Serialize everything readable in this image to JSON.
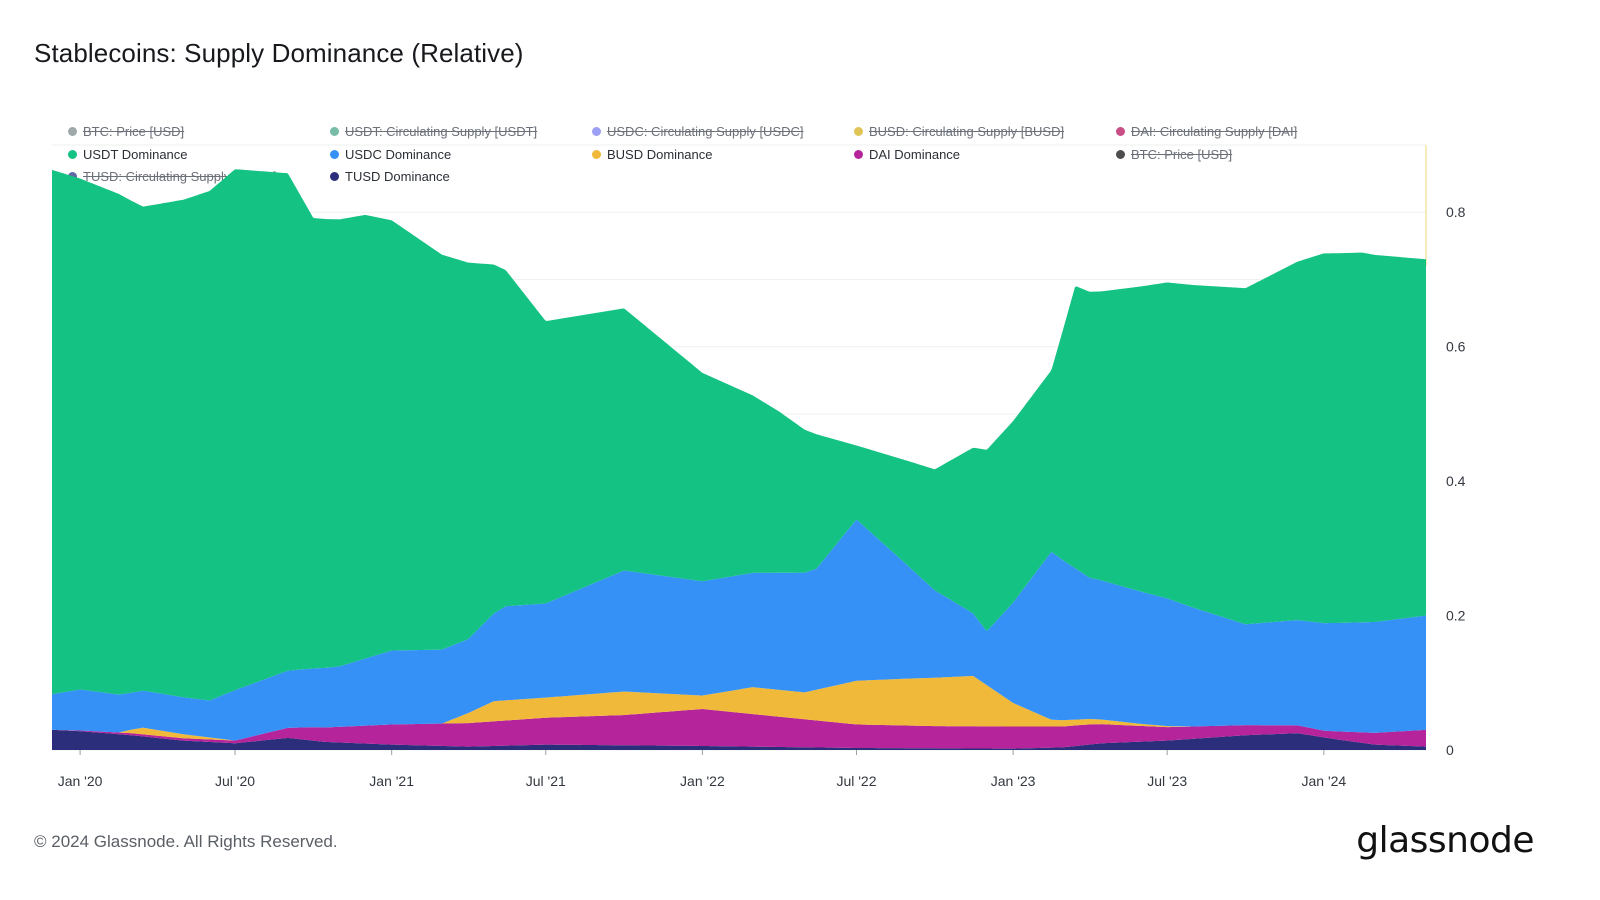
{
  "page": {
    "title": "Stablecoins: Supply Dominance (Relative)",
    "copyright": "© 2024 Glassnode. All Rights Reserved.",
    "brand": "glassnode"
  },
  "legend": {
    "rows": [
      [
        {
          "label": "BTC: Price [USD]",
          "color": "#7f8c8d",
          "enabled": false
        },
        {
          "label": "USDT: Circulating Supply [USDT]",
          "color": "#4aa58a",
          "enabled": false
        },
        {
          "label": "USDC: Circulating Supply [USDC]",
          "color": "#7b7ff0",
          "enabled": false
        },
        {
          "label": "BUSD: Circulating Supply [BUSD]",
          "color": "#d4b21c",
          "enabled": false
        },
        {
          "label": "DAI: Circulating Supply [DAI]",
          "color": "#b5135c",
          "enabled": false
        }
      ],
      [
        {
          "label": "USDT Dominance",
          "color": "#14c283",
          "enabled": true
        },
        {
          "label": "USDC Dominance",
          "color": "#3691f7",
          "enabled": true
        },
        {
          "label": "BUSD Dominance",
          "color": "#f0b93a",
          "enabled": true
        },
        {
          "label": "DAI Dominance",
          "color": "#b5249b",
          "enabled": true
        },
        {
          "label": "BTC: Price [USD]",
          "color": "#111111",
          "enabled": false
        }
      ],
      [
        {
          "label": "TUSD: Circulating Supply [TUSD]",
          "color": "#2c3585",
          "enabled": false
        },
        {
          "label": "TUSD Dominance",
          "color": "#2b2e7a",
          "enabled": true
        }
      ]
    ]
  },
  "chart_data": {
    "type": "area",
    "stacked": true,
    "x_ticks": [
      "Jan '20",
      "Jul '20",
      "Jan '21",
      "Jul '21",
      "Jan '22",
      "Jul '22",
      "Jan '23",
      "Jul '23",
      "Jan '24"
    ],
    "x_tick_dates": [
      "2020-01-01",
      "2020-07-01",
      "2021-01-01",
      "2021-07-01",
      "2022-01-01",
      "2022-07-01",
      "2023-01-01",
      "2023-07-01",
      "2024-01-01"
    ],
    "x_range": [
      "2019-11-29",
      "2024-04-30"
    ],
    "y_ticks": [
      "0",
      "0.2",
      "0.4",
      "0.6",
      "0.8"
    ],
    "ylim": [
      0,
      0.9
    ],
    "y_axis_side": "right",
    "grid": "horizontal",
    "series_order_bottom_to_top": [
      "TUSD Dominance",
      "DAI Dominance",
      "BUSD Dominance",
      "USDC Dominance",
      "USDT Dominance"
    ],
    "series": [
      {
        "name": "TUSD Dominance",
        "color": "#2b2e7a",
        "points": [
          [
            "2019-11-29",
            0.03
          ],
          [
            "2020-01-01",
            0.028
          ],
          [
            "2020-03-01",
            0.022
          ],
          [
            "2020-05-01",
            0.014
          ],
          [
            "2020-07-01",
            0.01
          ],
          [
            "2020-09-01",
            0.018
          ],
          [
            "2020-10-15",
            0.012
          ],
          [
            "2021-01-01",
            0.008
          ],
          [
            "2021-04-01",
            0.005
          ],
          [
            "2021-07-01",
            0.008
          ],
          [
            "2022-01-01",
            0.006
          ],
          [
            "2022-07-01",
            0.003
          ],
          [
            "2023-01-01",
            0.002
          ],
          [
            "2023-03-01",
            0.004
          ],
          [
            "2023-04-15",
            0.01
          ],
          [
            "2023-07-01",
            0.014
          ],
          [
            "2023-10-01",
            0.022
          ],
          [
            "2023-12-01",
            0.025
          ],
          [
            "2024-01-15",
            0.016
          ],
          [
            "2024-03-01",
            0.008
          ],
          [
            "2024-04-30",
            0.005
          ]
        ]
      },
      {
        "name": "DAI Dominance",
        "color": "#b5249b",
        "points": [
          [
            "2019-11-29",
            0.0
          ],
          [
            "2020-03-01",
            0.003
          ],
          [
            "2020-07-01",
            0.004
          ],
          [
            "2020-09-01",
            0.015
          ],
          [
            "2020-10-01",
            0.02
          ],
          [
            "2021-01-01",
            0.03
          ],
          [
            "2021-04-01",
            0.035
          ],
          [
            "2021-07-01",
            0.04
          ],
          [
            "2021-10-01",
            0.045
          ],
          [
            "2022-01-01",
            0.055
          ],
          [
            "2022-04-01",
            0.045
          ],
          [
            "2022-07-01",
            0.035
          ],
          [
            "2022-10-01",
            0.033
          ],
          [
            "2023-01-01",
            0.033
          ],
          [
            "2023-04-01",
            0.03
          ],
          [
            "2023-07-01",
            0.02
          ],
          [
            "2023-10-01",
            0.015
          ],
          [
            "2024-01-01",
            0.01
          ],
          [
            "2024-04-30",
            0.025
          ]
        ]
      },
      {
        "name": "BUSD Dominance",
        "color": "#f0b93a",
        "points": [
          [
            "2019-11-29",
            0.0
          ],
          [
            "2020-02-15",
            0.0
          ],
          [
            "2020-03-15",
            0.01
          ],
          [
            "2020-05-01",
            0.006
          ],
          [
            "2020-07-01",
            0.0
          ],
          [
            "2021-03-01",
            0.0
          ],
          [
            "2021-04-01",
            0.015
          ],
          [
            "2021-05-01",
            0.03
          ],
          [
            "2021-07-01",
            0.03
          ],
          [
            "2021-10-01",
            0.035
          ],
          [
            "2022-01-01",
            0.02
          ],
          [
            "2022-03-01",
            0.04
          ],
          [
            "2022-05-01",
            0.04
          ],
          [
            "2022-07-01",
            0.065
          ],
          [
            "2022-09-01",
            0.07
          ],
          [
            "2022-11-15",
            0.075
          ],
          [
            "2023-01-01",
            0.035
          ],
          [
            "2023-02-15",
            0.01
          ],
          [
            "2023-04-01",
            0.008
          ],
          [
            "2023-06-01",
            0.003
          ],
          [
            "2023-08-01",
            0.0
          ],
          [
            "2024-04-30",
            0.0
          ]
        ]
      },
      {
        "name": "USDC Dominance",
        "color": "#3691f7",
        "points": [
          [
            "2019-11-29",
            0.053
          ],
          [
            "2020-01-01",
            0.061
          ],
          [
            "2020-03-01",
            0.055
          ],
          [
            "2020-06-01",
            0.055
          ],
          [
            "2020-07-01",
            0.075
          ],
          [
            "2020-09-01",
            0.085
          ],
          [
            "2020-11-01",
            0.09
          ],
          [
            "2021-01-01",
            0.11
          ],
          [
            "2021-04-01",
            0.11
          ],
          [
            "2021-05-15",
            0.14
          ],
          [
            "2021-07-01",
            0.14
          ],
          [
            "2021-10-01",
            0.18
          ],
          [
            "2022-01-01",
            0.17
          ],
          [
            "2022-03-01",
            0.17
          ],
          [
            "2022-05-15",
            0.18
          ],
          [
            "2022-07-01",
            0.24
          ],
          [
            "2022-10-01",
            0.13
          ],
          [
            "2022-12-01",
            0.08
          ],
          [
            "2023-02-15",
            0.25
          ],
          [
            "2023-04-01",
            0.21
          ],
          [
            "2023-07-01",
            0.19
          ],
          [
            "2023-10-01",
            0.15
          ],
          [
            "2024-01-01",
            0.16
          ],
          [
            "2024-04-30",
            0.17
          ]
        ]
      },
      {
        "name": "USDT Dominance",
        "color": "#14c283",
        "points": [
          [
            "2019-11-29",
            0.78
          ],
          [
            "2020-01-01",
            0.76
          ],
          [
            "2020-02-15",
            0.745
          ],
          [
            "2020-03-15",
            0.72
          ],
          [
            "2020-05-01",
            0.74
          ],
          [
            "2020-07-01",
            0.775
          ],
          [
            "2020-09-01",
            0.74
          ],
          [
            "2020-10-01",
            0.67
          ],
          [
            "2020-12-01",
            0.66
          ],
          [
            "2021-01-01",
            0.64
          ],
          [
            "2021-04-01",
            0.56
          ],
          [
            "2021-05-15",
            0.5
          ],
          [
            "2021-07-01",
            0.42
          ],
          [
            "2021-10-01",
            0.39
          ],
          [
            "2022-01-01",
            0.31
          ],
          [
            "2022-04-01",
            0.24
          ],
          [
            "2022-05-15",
            0.2
          ],
          [
            "2022-07-01",
            0.11
          ],
          [
            "2022-10-01",
            0.18
          ],
          [
            "2022-12-01",
            0.27
          ],
          [
            "2023-02-15",
            0.27
          ],
          [
            "2023-03-15",
            0.42
          ],
          [
            "2023-04-15",
            0.43
          ],
          [
            "2023-07-01",
            0.47
          ],
          [
            "2023-10-01",
            0.5
          ],
          [
            "2024-01-01",
            0.55
          ],
          [
            "2024-02-15",
            0.55
          ],
          [
            "2024-04-30",
            0.53
          ]
        ]
      }
    ]
  }
}
